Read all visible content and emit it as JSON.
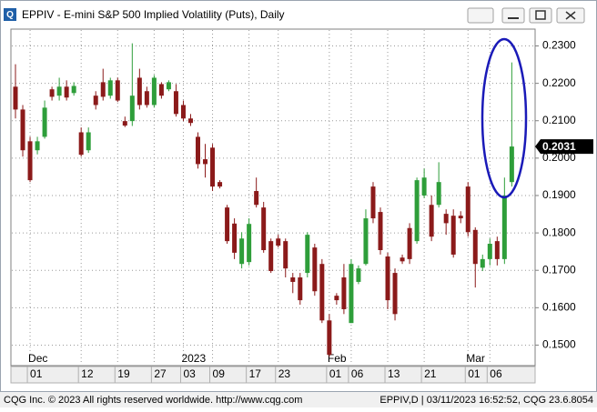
{
  "chart_data": {
    "type": "candlestick",
    "title": "EPPIV - E-mini S&P 500 Implied Volatility (Puts), Daily",
    "categories": [
      null,
      null,
      "01",
      null,
      null,
      null,
      null,
      null,
      null,
      "12",
      null,
      null,
      null,
      null,
      "19",
      null,
      null,
      null,
      null,
      "27",
      null,
      null,
      null,
      "03",
      null,
      null,
      null,
      "09",
      null,
      null,
      null,
      null,
      "17",
      null,
      null,
      null,
      "23",
      null,
      null,
      null,
      null,
      null,
      null,
      "01",
      null,
      null,
      "06",
      null,
      null,
      null,
      null,
      "13",
      null,
      null,
      null,
      null,
      "21",
      null,
      null,
      null,
      null,
      null,
      "01",
      null,
      null,
      "06",
      null,
      null,
      null
    ],
    "months": [
      null,
      null,
      "Dec",
      null,
      null,
      null,
      null,
      null,
      null,
      null,
      null,
      null,
      null,
      null,
      null,
      null,
      null,
      null,
      null,
      null,
      null,
      null,
      null,
      "2023",
      null,
      null,
      null,
      null,
      null,
      null,
      null,
      null,
      null,
      null,
      null,
      null,
      null,
      null,
      null,
      null,
      null,
      null,
      null,
      "Feb",
      null,
      null,
      null,
      null,
      null,
      null,
      null,
      null,
      null,
      null,
      null,
      null,
      null,
      null,
      null,
      null,
      null,
      null,
      "Mar",
      null,
      null,
      null,
      null,
      null,
      null
    ],
    "open": [
      0.2191,
      0.213,
      0.2045,
      0.2021,
      0.2057,
      0.2184,
      0.2167,
      0.2191,
      0.2174,
      0.2069,
      0.2021,
      0.2167,
      0.2203,
      0.2167,
      0.2208,
      0.2099,
      0.2099,
      0.2215,
      0.2179,
      0.2142,
      0.2198,
      0.2184,
      0.2179,
      0.2142,
      0.2106,
      0.2057,
      0.1997,
      0.2028,
      0.1936,
      0.1868,
      0.1825,
      0.1717,
      0.1722,
      0.1912,
      0.1868,
      0.1778,
      0.1785,
      0.1778,
      0.1681,
      0.1681,
      0.1693,
      0.1761,
      0.1717,
      0.1566,
      0.1632,
      0.1681,
      0.1559,
      0.1669,
      0.1717,
      0.1924,
      0.1856,
      0.1737,
      0.1693,
      0.1734,
      0.1813,
      0.1778,
      0.19,
      0.1875,
      0.1875,
      0.1851,
      0.1846,
      0.1846,
      0.1924,
      0.1808,
      0.1707,
      0.173,
      0.1778,
      0.173,
      0.1936
    ],
    "high": [
      0.2251,
      0.2142,
      0.2057,
      0.2057,
      0.2154,
      0.2191,
      0.2215,
      0.2208,
      0.2203,
      0.2082,
      0.2082,
      0.2179,
      0.2239,
      0.2215,
      0.2215,
      0.2111,
      0.2307,
      0.2239,
      0.2191,
      0.2222,
      0.2203,
      0.2208,
      0.2198,
      0.2154,
      0.2118,
      0.2069,
      0.2038,
      0.2038,
      0.1941,
      0.1875,
      0.1839,
      0.1802,
      0.1839,
      0.1948,
      0.1883,
      0.1785,
      0.1795,
      0.1785,
      0.1693,
      0.1693,
      0.1802,
      0.1771,
      0.173,
      0.1583,
      0.1639,
      0.1717,
      0.173,
      0.1713,
      0.1863,
      0.1936,
      0.1868,
      0.1747,
      0.1705,
      0.1742,
      0.1826,
      0.1948,
      0.1972,
      0.19,
      0.1989,
      0.1863,
      0.1863,
      0.1858,
      0.1936,
      0.1815,
      0.1742,
      0.1785,
      0.179,
      0.1948,
      0.2256
    ],
    "low": [
      0.2106,
      0.2004,
      0.1936,
      0.201,
      0.2052,
      0.2154,
      0.2154,
      0.2154,
      0.2167,
      0.2004,
      0.2014,
      0.213,
      0.2154,
      0.2159,
      0.215,
      0.2083,
      0.2086,
      0.213,
      0.2135,
      0.2135,
      0.2159,
      0.2179,
      0.2111,
      0.2099,
      0.2086,
      0.1972,
      0.1948,
      0.1912,
      0.1919,
      0.1771,
      0.173,
      0.1705,
      0.1713,
      0.1868,
      0.1747,
      0.1693,
      0.1761,
      0.1681,
      0.1639,
      0.1608,
      0.1681,
      0.1632,
      0.1559,
      0.1469,
      0.1608,
      0.1583,
      0.1559,
      0.1663,
      0.1713,
      0.1826,
      0.1742,
      0.1596,
      0.1566,
      0.1717,
      0.1717,
      0.1771,
      0.1893,
      0.1778,
      0.1868,
      0.1795,
      0.1734,
      0.1826,
      0.179,
      0.1654,
      0.1698,
      0.1713,
      0.1713,
      0.1717,
      0.1924
    ],
    "close": [
      0.213,
      0.2021,
      0.1941,
      0.2045,
      0.2135,
      0.2164,
      0.2191,
      0.2162,
      0.2193,
      0.2009,
      0.2069,
      0.2142,
      0.2164,
      0.2208,
      0.2154,
      0.2087,
      0.2167,
      0.2142,
      0.2142,
      0.2215,
      0.2167,
      0.2203,
      0.2118,
      0.2106,
      0.2094,
      0.1984,
      0.1984,
      0.1924,
      0.1924,
      0.1778,
      0.1747,
      0.1785,
      0.1824,
      0.1875,
      0.1754,
      0.1698,
      0.1766,
      0.1705,
      0.1669,
      0.162,
      0.1795,
      0.1644,
      0.1566,
      0.1474,
      0.162,
      0.1596,
      0.1717,
      0.1705,
      0.1839,
      0.1839,
      0.1754,
      0.162,
      0.1583,
      0.1724,
      0.173,
      0.1941,
      0.1948,
      0.179,
      0.1936,
      0.1826,
      0.1742,
      0.1839,
      0.1802,
      0.1717,
      0.173,
      0.1771,
      0.173,
      0.19,
      0.2031
    ],
    "up_color": "#2e9e3a",
    "down_color": "#8b1a1a",
    "ylim": [
      0.145,
      0.2345
    ],
    "yticks": [
      {
        "value": 0.15,
        "label": "0.1500"
      },
      {
        "value": 0.16,
        "label": "0.1600"
      },
      {
        "value": 0.17,
        "label": "0.1700"
      },
      {
        "value": 0.18,
        "label": "0.1800"
      },
      {
        "value": 0.19,
        "label": "0.1900"
      },
      {
        "value": 0.2,
        "label": "0.2000"
      },
      {
        "value": 0.21,
        "label": "0.2100"
      },
      {
        "value": 0.22,
        "label": "0.2200"
      },
      {
        "value": 0.23,
        "label": "0.2300"
      }
    ],
    "grid": true,
    "last_value": 0.2031
  },
  "footer": {
    "left": "CQG Inc. © 2023 All rights reserved worldwide. http://www.cqg.com",
    "right": "EPPIV,D | 03/11/2023 16:52:52, CQG 23.6.8054"
  }
}
